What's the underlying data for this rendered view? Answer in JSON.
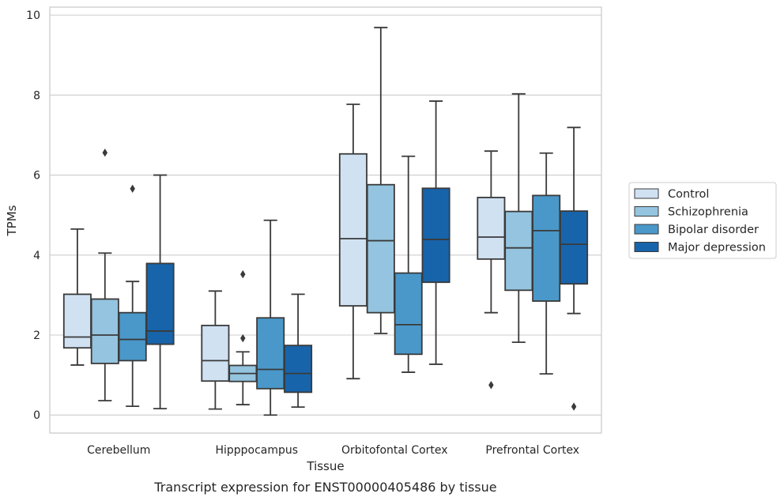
{
  "chart_data": {
    "type": "box",
    "caption": "Transcript expression for ENST00000405486 by tissue",
    "xlabel": "Tissue",
    "ylabel": "TPMs",
    "ylim": [
      -0.45,
      10.2
    ],
    "yticks": [
      0,
      2,
      4,
      6,
      8,
      10
    ],
    "grid": "horizontal",
    "legend_position": "right",
    "categories": [
      "Cerebellum",
      "Hipppocampus",
      "Orbitofontal Cortex",
      "Prefrontal Cortex"
    ],
    "series": [
      {
        "name": "Control",
        "color": "#d0e1f2",
        "boxes": [
          {
            "whisker_low": 1.25,
            "q1": 1.68,
            "median": 1.95,
            "q3": 3.02,
            "whisker_high": 4.65,
            "outliers": []
          },
          {
            "whisker_low": 0.15,
            "q1": 0.85,
            "median": 1.36,
            "q3": 2.24,
            "whisker_high": 3.1,
            "outliers": []
          },
          {
            "whisker_low": 0.91,
            "q1": 2.73,
            "median": 4.41,
            "q3": 6.53,
            "whisker_high": 7.77,
            "outliers": []
          },
          {
            "whisker_low": 2.56,
            "q1": 3.9,
            "median": 4.45,
            "q3": 5.44,
            "whisker_high": 6.6,
            "outliers": [
              0.75
            ]
          }
        ]
      },
      {
        "name": "Schizophrenia",
        "color": "#94c4df",
        "boxes": [
          {
            "whisker_low": 0.36,
            "q1": 1.29,
            "median": 2.0,
            "q3": 2.9,
            "whisker_high": 4.05,
            "outliers": [
              6.56
            ]
          },
          {
            "whisker_low": 0.26,
            "q1": 0.84,
            "median": 1.04,
            "q3": 1.24,
            "whisker_high": 1.58,
            "outliers": [
              1.92,
              3.52
            ]
          },
          {
            "whisker_low": 2.04,
            "q1": 2.56,
            "median": 4.36,
            "q3": 5.76,
            "whisker_high": 9.69,
            "outliers": []
          },
          {
            "whisker_low": 1.82,
            "q1": 3.12,
            "median": 4.18,
            "q3": 5.09,
            "whisker_high": 8.03,
            "outliers": []
          }
        ]
      },
      {
        "name": "Bipolar disorder",
        "color": "#4a98c9",
        "boxes": [
          {
            "whisker_low": 0.22,
            "q1": 1.36,
            "median": 1.89,
            "q3": 2.56,
            "whisker_high": 3.34,
            "outliers": [
              5.66
            ]
          },
          {
            "whisker_low": 0.0,
            "q1": 0.66,
            "median": 1.14,
            "q3": 2.43,
            "whisker_high": 4.87,
            "outliers": []
          },
          {
            "whisker_low": 1.07,
            "q1": 1.52,
            "median": 2.26,
            "q3": 3.55,
            "whisker_high": 6.47,
            "outliers": []
          },
          {
            "whisker_low": 1.03,
            "q1": 2.85,
            "median": 4.61,
            "q3": 5.49,
            "whisker_high": 6.55,
            "outliers": []
          }
        ]
      },
      {
        "name": "Major depression",
        "color": "#1764ab",
        "boxes": [
          {
            "whisker_low": 0.16,
            "q1": 1.77,
            "median": 2.1,
            "q3": 3.79,
            "whisker_high": 6.0,
            "outliers": []
          },
          {
            "whisker_low": 0.2,
            "q1": 0.57,
            "median": 1.04,
            "q3": 1.74,
            "whisker_high": 3.02,
            "outliers": []
          },
          {
            "whisker_low": 1.27,
            "q1": 3.32,
            "median": 4.39,
            "q3": 5.67,
            "whisker_high": 7.85,
            "outliers": []
          },
          {
            "whisker_low": 2.54,
            "q1": 3.28,
            "median": 4.27,
            "q3": 5.1,
            "whisker_high": 7.19,
            "outliers": [
              0.21
            ]
          }
        ]
      }
    ]
  }
}
